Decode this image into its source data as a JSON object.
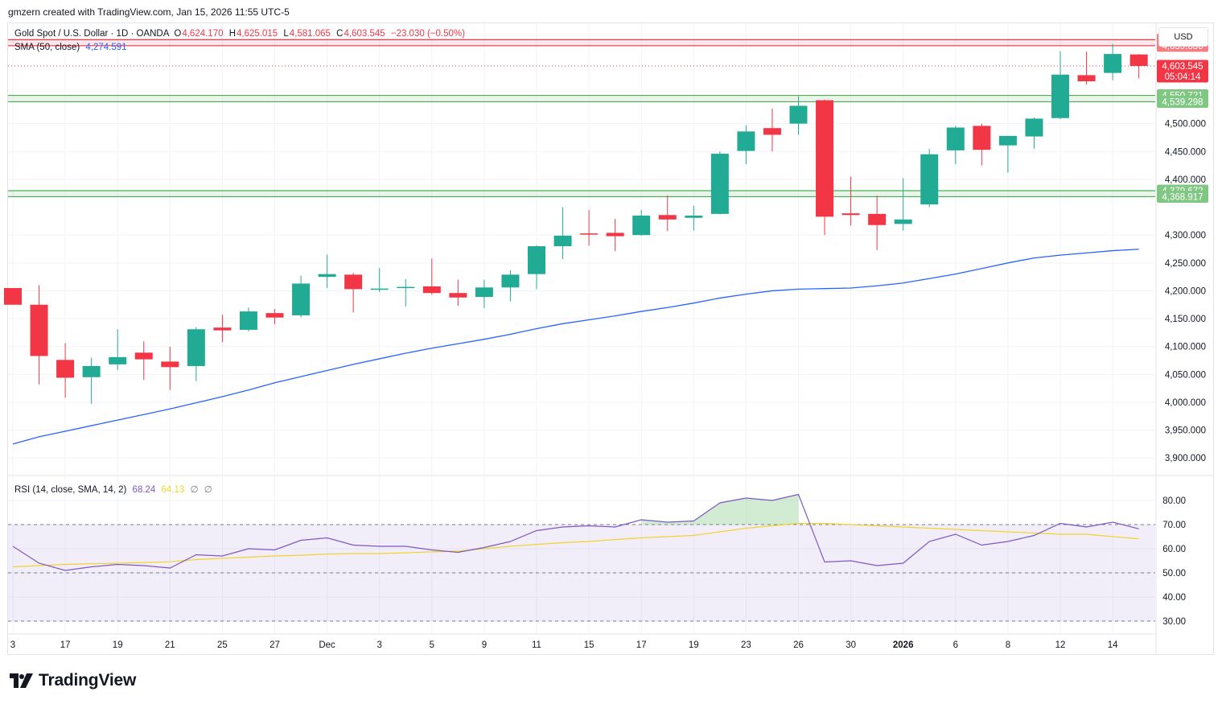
{
  "credit": "gmzern created with TradingView.com, Jan 15, 2026 11:55 UTC-5",
  "symbol": {
    "name": "Gold Spot / U.S. Dollar · 1D · OANDA",
    "o_label": "O",
    "o": "4,624.170",
    "h_label": "H",
    "h": "4,625.015",
    "l_label": "L",
    "l": "4,581.065",
    "c_label": "C",
    "c": "4,603.545",
    "change": "−23.030 (−0.50%)"
  },
  "sma_legend": {
    "label": "SMA (50, close)",
    "value": "4,274.591"
  },
  "rsi_legend": {
    "label": "RSI (14, close, SMA, 14, 2)",
    "rsi": "68.24",
    "rsi_ma": "64.13",
    "v1": "∅",
    "v2": "∅"
  },
  "currency": "USD",
  "brand": "TradingView",
  "colors": {
    "up": "#22ab94",
    "down": "#f23645",
    "sma": "#2962ff",
    "rsi": "#7e57c2",
    "rsi_ma": "#f2d32e",
    "zone_green": "#4caf50",
    "zone_red": "#f23645",
    "rsi_band": "#7e57c2"
  },
  "price_axis": {
    "ticks": [
      {
        "v": 4500,
        "t": "4,500.000"
      },
      {
        "v": 4450,
        "t": "4,450.000"
      },
      {
        "v": 4400,
        "t": "4,400.000"
      },
      {
        "v": 4300,
        "t": "4,300.000"
      },
      {
        "v": 4250,
        "t": "4,250.000"
      },
      {
        "v": 4200,
        "t": "4,200.000"
      },
      {
        "v": 4150,
        "t": "4,150.000"
      },
      {
        "v": 4100,
        "t": "4,100.000"
      },
      {
        "v": 4050,
        "t": "4,050.000"
      },
      {
        "v": 4000,
        "t": "4,000.000"
      },
      {
        "v": 3950,
        "t": "3,950.000"
      },
      {
        "v": 3900,
        "t": "3,900.000"
      }
    ],
    "labels": [
      {
        "v": 4650.58,
        "t": "4,650.580",
        "color": "#f77c80"
      },
      {
        "v": 4639.836,
        "t": "4,639.836",
        "color": "#f77c80"
      },
      {
        "v": 4603.545,
        "t": "4,603.545",
        "sub": "05:04:14",
        "color": "#f23645"
      },
      {
        "v": 4550.721,
        "t": "4,550.721",
        "color": "#81c784"
      },
      {
        "v": 4539.298,
        "t": "4,539.298",
        "color": "#81c784"
      },
      {
        "v": 4379.672,
        "t": "4,379.672",
        "color": "#81c784"
      },
      {
        "v": 4368.917,
        "t": "4,368.917",
        "color": "#81c784"
      }
    ]
  },
  "rsi_axis": {
    "ticks": [
      {
        "v": 80,
        "t": "80.00"
      },
      {
        "v": 70,
        "t": "70.00"
      },
      {
        "v": 60,
        "t": "60.00"
      },
      {
        "v": 50,
        "t": "50.00"
      },
      {
        "v": 40,
        "t": "40.00"
      },
      {
        "v": 30,
        "t": "30.00"
      }
    ],
    "levels": [
      70,
      50,
      30
    ]
  },
  "time_axis": [
    {
      "i": 0,
      "t": "3",
      "bold": false
    },
    {
      "i": 2,
      "t": "17",
      "bold": false
    },
    {
      "i": 4,
      "t": "19",
      "bold": false
    },
    {
      "i": 6,
      "t": "21",
      "bold": false
    },
    {
      "i": 8,
      "t": "25",
      "bold": false
    },
    {
      "i": 10,
      "t": "27",
      "bold": false
    },
    {
      "i": 12,
      "t": "Dec",
      "bold": false
    },
    {
      "i": 14,
      "t": "3",
      "bold": false
    },
    {
      "i": 16,
      "t": "5",
      "bold": false
    },
    {
      "i": 18,
      "t": "9",
      "bold": false
    },
    {
      "i": 20,
      "t": "11",
      "bold": false
    },
    {
      "i": 22,
      "t": "15",
      "bold": false
    },
    {
      "i": 24,
      "t": "17",
      "bold": false
    },
    {
      "i": 26,
      "t": "19",
      "bold": false
    },
    {
      "i": 28,
      "t": "23",
      "bold": false
    },
    {
      "i": 30,
      "t": "26",
      "bold": false
    },
    {
      "i": 32,
      "t": "30",
      "bold": false
    },
    {
      "i": 34,
      "t": "2026",
      "bold": true
    },
    {
      "i": 36,
      "t": "6",
      "bold": false
    },
    {
      "i": 38,
      "t": "8",
      "bold": false
    },
    {
      "i": 40,
      "t": "12",
      "bold": false
    },
    {
      "i": 42,
      "t": "14",
      "bold": false
    }
  ],
  "chart_data": {
    "type": "candlestick",
    "symbol": "Gold Spot / U.S. Dollar",
    "interval": "1D",
    "ylim": [
      3870,
      4680
    ],
    "candles": [
      {
        "o": 4205,
        "h": 4205,
        "l": 4175,
        "c": 4175
      },
      {
        "o": 4175,
        "h": 4210,
        "l": 4032,
        "c": 4083
      },
      {
        "o": 4076,
        "h": 4106,
        "l": 4008,
        "c": 4044
      },
      {
        "o": 4045,
        "h": 4080,
        "l": 3997,
        "c": 4065
      },
      {
        "o": 4068,
        "h": 4131,
        "l": 4058,
        "c": 4081
      },
      {
        "o": 4089,
        "h": 4109,
        "l": 4040,
        "c": 4077
      },
      {
        "o": 4073,
        "h": 4100,
        "l": 4022,
        "c": 4063
      },
      {
        "o": 4065,
        "h": 4135,
        "l": 4038,
        "c": 4131
      },
      {
        "o": 4134,
        "h": 4157,
        "l": 4108,
        "c": 4129
      },
      {
        "o": 4130,
        "h": 4170,
        "l": 4127,
        "c": 4163
      },
      {
        "o": 4160,
        "h": 4167,
        "l": 4140,
        "c": 4152
      },
      {
        "o": 4156,
        "h": 4227,
        "l": 4152,
        "c": 4213
      },
      {
        "o": 4225,
        "h": 4265,
        "l": 4205,
        "c": 4230
      },
      {
        "o": 4229,
        "h": 4232,
        "l": 4161,
        "c": 4203
      },
      {
        "o": 4202,
        "h": 4241,
        "l": 4198,
        "c": 4204
      },
      {
        "o": 4205,
        "h": 4221,
        "l": 4172,
        "c": 4207
      },
      {
        "o": 4208,
        "h": 4258,
        "l": 4193,
        "c": 4196
      },
      {
        "o": 4196,
        "h": 4220,
        "l": 4173,
        "c": 4188
      },
      {
        "o": 4189,
        "h": 4220,
        "l": 4169,
        "c": 4206
      },
      {
        "o": 4206,
        "h": 4237,
        "l": 4181,
        "c": 4229
      },
      {
        "o": 4230,
        "h": 4282,
        "l": 4203,
        "c": 4280
      },
      {
        "o": 4280,
        "h": 4350,
        "l": 4257,
        "c": 4299
      },
      {
        "o": 4303,
        "h": 4345,
        "l": 4281,
        "c": 4302
      },
      {
        "o": 4304,
        "h": 4329,
        "l": 4271,
        "c": 4298
      },
      {
        "o": 4300,
        "h": 4345,
        "l": 4299,
        "c": 4335
      },
      {
        "o": 4336,
        "h": 4371,
        "l": 4307,
        "c": 4328
      },
      {
        "o": 4331,
        "h": 4353,
        "l": 4308,
        "c": 4335
      },
      {
        "o": 4338,
        "h": 4450,
        "l": 4337,
        "c": 4446
      },
      {
        "o": 4451,
        "h": 4497,
        "l": 4427,
        "c": 4486
      },
      {
        "o": 4492,
        "h": 4527,
        "l": 4450,
        "c": 4480
      },
      {
        "o": 4500,
        "h": 4549,
        "l": 4480,
        "c": 4532
      },
      {
        "o": 4542,
        "h": 4543,
        "l": 4300,
        "c": 4333
      },
      {
        "o": 4339,
        "h": 4405,
        "l": 4317,
        "c": 4336
      },
      {
        "o": 4338,
        "h": 4371,
        "l": 4273,
        "c": 4318
      },
      {
        "o": 4320,
        "h": 4402,
        "l": 4308,
        "c": 4328
      },
      {
        "o": 4355,
        "h": 4455,
        "l": 4350,
        "c": 4445
      },
      {
        "o": 4452,
        "h": 4496,
        "l": 4427,
        "c": 4493
      },
      {
        "o": 4496,
        "h": 4500,
        "l": 4425,
        "c": 4453
      },
      {
        "o": 4461,
        "h": 4478,
        "l": 4412,
        "c": 4478
      },
      {
        "o": 4477,
        "h": 4511,
        "l": 4455,
        "c": 4509
      },
      {
        "o": 4510,
        "h": 4630,
        "l": 4508,
        "c": 4588
      },
      {
        "o": 4587,
        "h": 4629,
        "l": 4570,
        "c": 4576
      },
      {
        "o": 4591,
        "h": 4643,
        "l": 4578,
        "c": 4625
      },
      {
        "o": 4624.17,
        "h": 4625.015,
        "l": 4581.065,
        "c": 4603.545
      }
    ],
    "sma50": [
      3925,
      3938,
      3948,
      3958,
      3968,
      3978,
      3988,
      3999,
      4010,
      4022,
      4035,
      4046,
      4057,
      4068,
      4078,
      4088,
      4097,
      4105,
      4113,
      4122,
      4132,
      4141,
      4148,
      4155,
      4163,
      4170,
      4178,
      4187,
      4194,
      4200,
      4203,
      4204,
      4205,
      4209,
      4214,
      4222,
      4230,
      4240,
      4250,
      4259,
      4264,
      4268,
      4272,
      4274.591
    ],
    "rsi": [
      61,
      54,
      51,
      52.5,
      53.5,
      53,
      52,
      57.5,
      57,
      60,
      59.5,
      63.5,
      64.5,
      61.5,
      61,
      61,
      59.5,
      58.5,
      60.5,
      63,
      67.5,
      69,
      69.5,
      69,
      72,
      71,
      71.5,
      79,
      81,
      80,
      82.5,
      54.5,
      55,
      53,
      54,
      63,
      66,
      61.5,
      63,
      65.5,
      70.5,
      69,
      71,
      68.24
    ],
    "rsi_ma": [
      52.5,
      53,
      53.5,
      53.8,
      54,
      54.3,
      54.6,
      55.5,
      56,
      56.5,
      57,
      57.3,
      57.8,
      58,
      58,
      58.3,
      58.7,
      59,
      60,
      61,
      61.8,
      62.5,
      63,
      63.8,
      64.5,
      65,
      65.5,
      67,
      68.5,
      69.5,
      70.5,
      70.5,
      70,
      69.5,
      69,
      68.5,
      68,
      67.5,
      67,
      66.5,
      66,
      66,
      65,
      64.13
    ],
    "sma_label": "SMA (50, close)",
    "rsi_label": "RSI (14, close, SMA, 14, 2)",
    "rsi_levels": [
      70,
      50,
      30
    ],
    "rsi_ylim": [
      25,
      90
    ],
    "zones": [
      {
        "from": 4639.836,
        "to": 4650.58,
        "color": "red"
      },
      {
        "from": 4539.298,
        "to": 4550.721,
        "color": "green"
      },
      {
        "from": 4368.917,
        "to": 4379.672,
        "color": "green"
      }
    ],
    "current_price": 4603.545,
    "countdown": "05:04:14"
  }
}
